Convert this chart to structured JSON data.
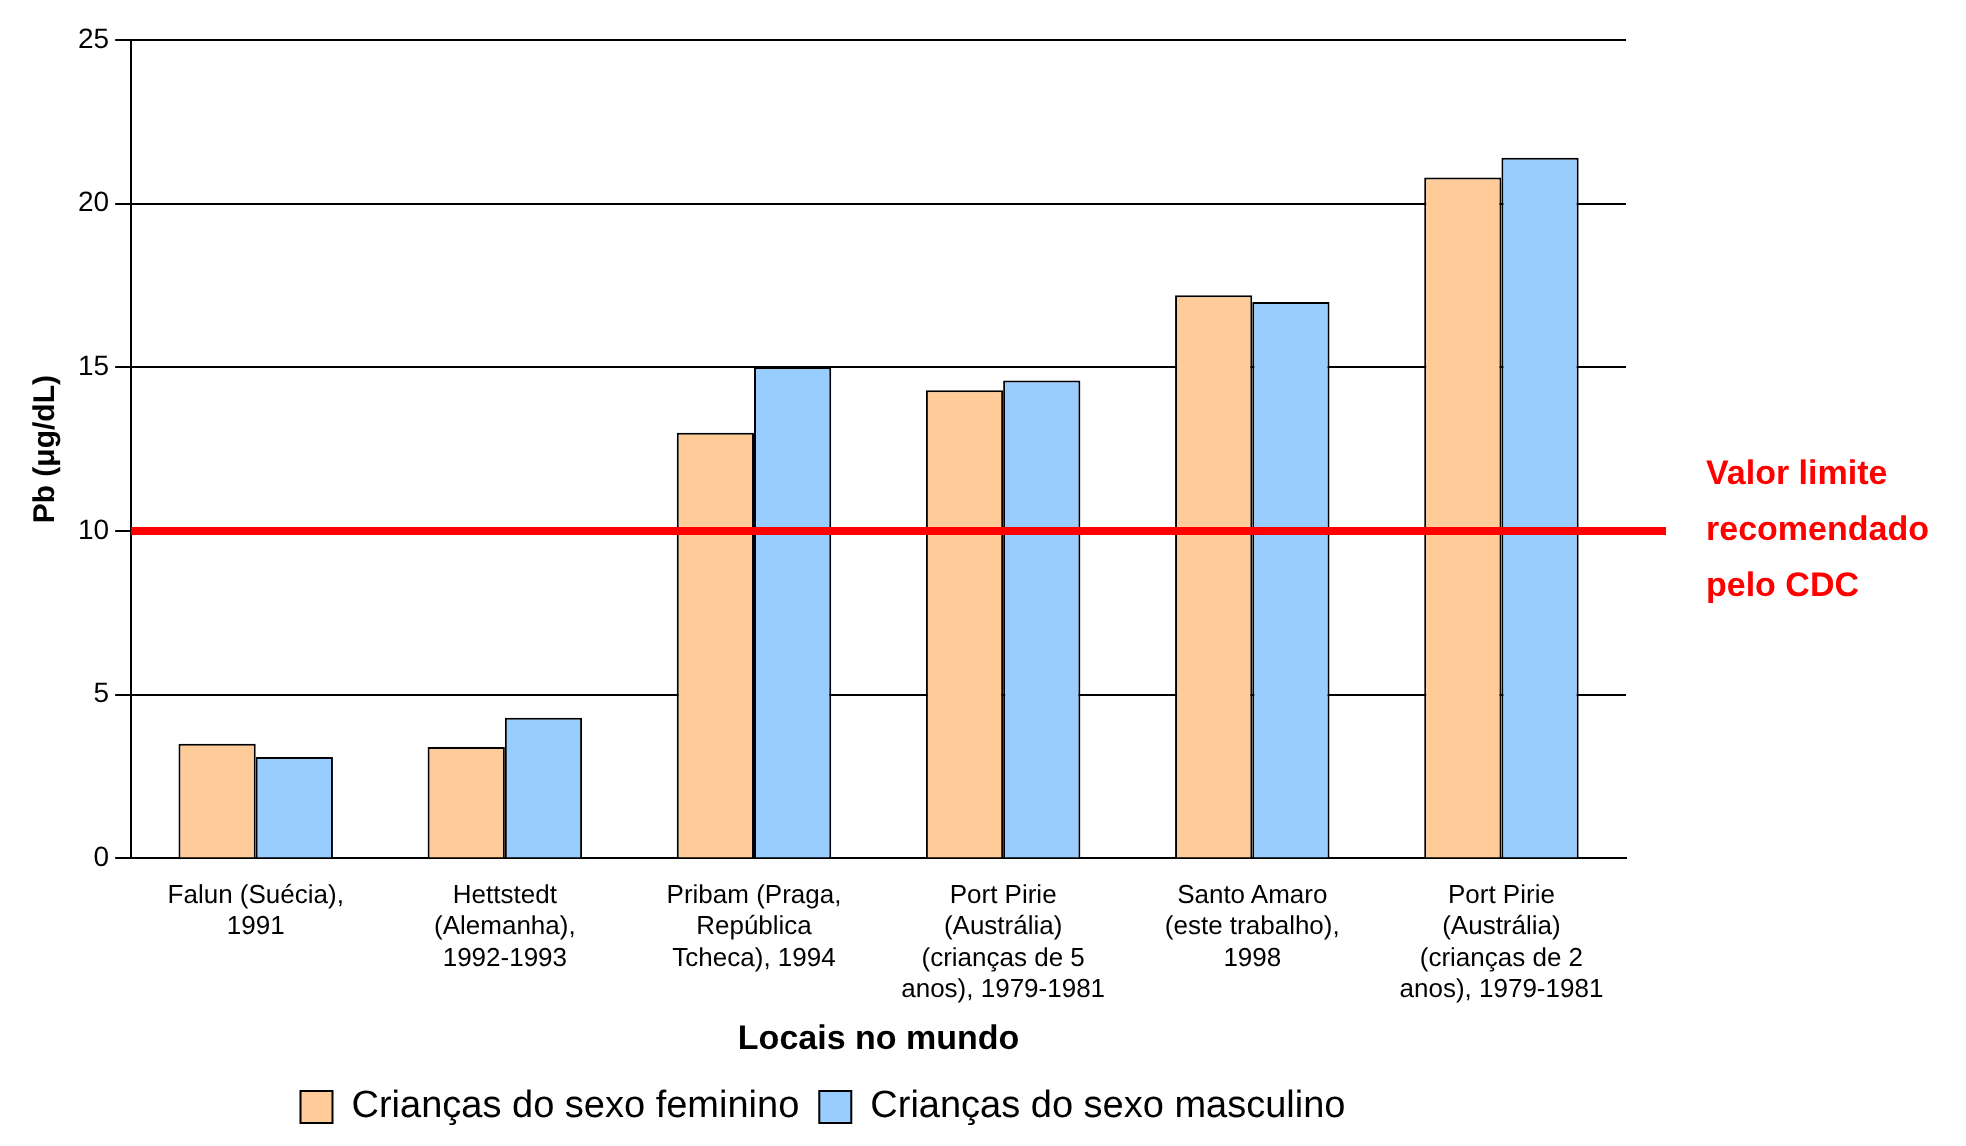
{
  "chart_data": {
    "type": "bar",
    "xlabel": "Locais no mundo",
    "ylabel": "Pb (μg/dL)",
    "categories": [
      "Falun (Suécia), 1991",
      "Hettstedt (Alemanha), 1992-1993",
      "Pribam (Praga, República Tcheca), 1994",
      "Port Pirie (Austrália) (crianças de 5 anos), 1979-1981",
      "Santo Amaro (este trabalho), 1998",
      "Port Pirie (Austrália) (crianças de 2 anos), 1979-1981"
    ],
    "series": [
      {
        "name": "Crianças do sexo feminino",
        "color": "#ffcc99",
        "values": [
          3.5,
          3.4,
          13.0,
          14.3,
          17.2,
          20.8
        ]
      },
      {
        "name": "Crianças do sexo masculino",
        "color": "#99ccff",
        "values": [
          3.1,
          4.3,
          15.0,
          14.6,
          17.0,
          21.4
        ]
      }
    ],
    "ylim": [
      0,
      25
    ],
    "yticks": [
      0,
      5,
      10,
      15,
      20,
      25
    ],
    "grid": "y",
    "legend": "bottom",
    "ref_lines": [
      {
        "axis": "y",
        "value": 10,
        "label": "Valor limite recomendado pelo CDC",
        "color": "#ff0000"
      }
    ]
  }
}
